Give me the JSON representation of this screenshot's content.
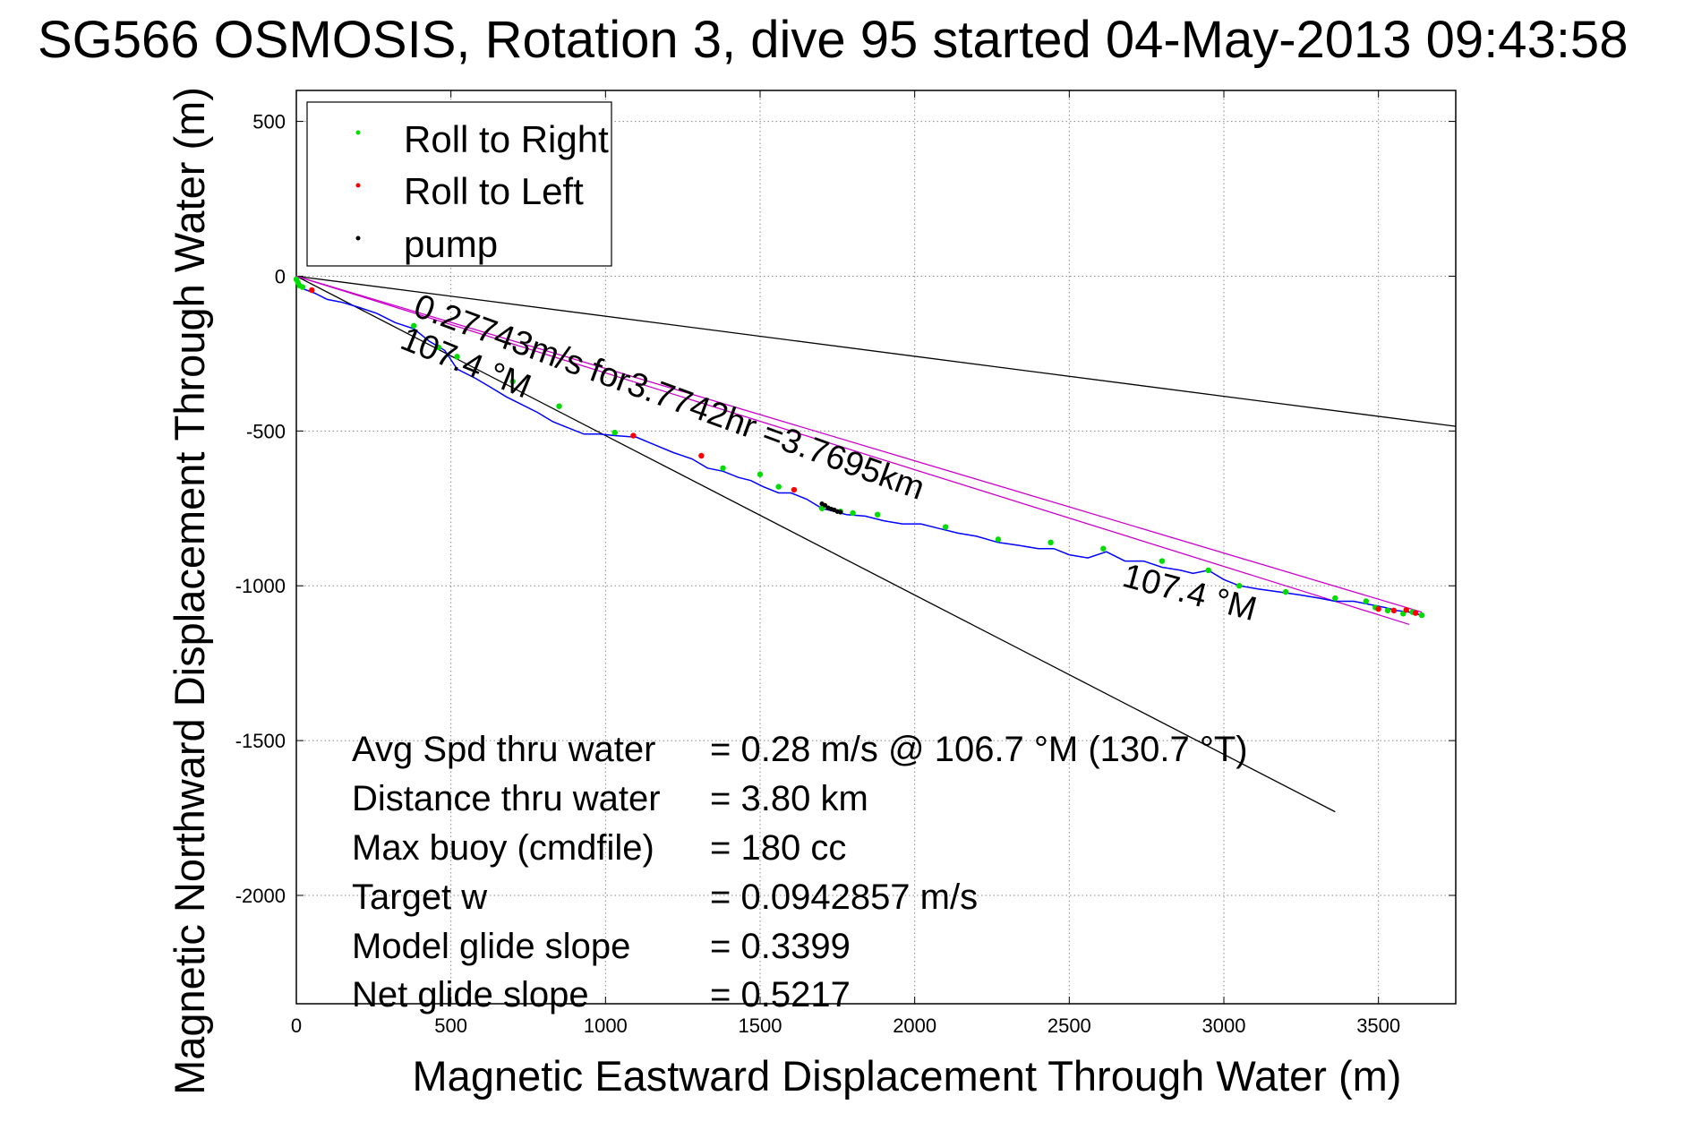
{
  "chart_data": {
    "type": "line",
    "title": "SG566 OSMOSIS, Rotation 3, dive 95 started 04-May-2013 09:43:58",
    "xlabel": "Magnetic Eastward Displacement Through Water (m)",
    "ylabel": "Magnetic Northward Displacement Through Water (m)",
    "xlim": [
      0,
      3750
    ],
    "ylim": [
      -2350,
      600
    ],
    "xticks": [
      0,
      500,
      1000,
      1500,
      2000,
      2500,
      3000,
      3500
    ],
    "yticks": [
      500,
      0,
      -500,
      -1000,
      -1500,
      -2000
    ],
    "grid": true,
    "legend": {
      "placement": "top-left",
      "entries": [
        {
          "label": "Roll to Right",
          "color": "#00dd00"
        },
        {
          "label": "Roll to Left",
          "color": "#ff0000"
        },
        {
          "label": "pump",
          "color": "#000000"
        }
      ]
    },
    "track": {
      "color": "#0000ff",
      "x": [
        0,
        20,
        60,
        100,
        150,
        200,
        260,
        320,
        380,
        430,
        480,
        520,
        580,
        630,
        680,
        720,
        780,
        830,
        880,
        930,
        980,
        1030,
        1100,
        1160,
        1220,
        1280,
        1330,
        1380,
        1430,
        1470,
        1510,
        1560,
        1600,
        1650,
        1700,
        1740,
        1780,
        1840,
        1900,
        1960,
        2020,
        2080,
        2140,
        2200,
        2270,
        2340,
        2400,
        2450,
        2500,
        2560,
        2620,
        2680,
        2740,
        2800,
        2860,
        2900,
        2950,
        3000,
        3050,
        3110,
        3180,
        3250,
        3310,
        3360,
        3420,
        3470,
        3520,
        3560,
        3600,
        3640
      ],
      "y": [
        -10,
        -40,
        -55,
        -75,
        -85,
        -100,
        -120,
        -150,
        -170,
        -210,
        -240,
        -300,
        -330,
        -360,
        -390,
        -410,
        -440,
        -470,
        -490,
        -510,
        -510,
        -515,
        -520,
        -545,
        -570,
        -590,
        -620,
        -630,
        -650,
        -660,
        -680,
        -700,
        -700,
        -720,
        -750,
        -760,
        -770,
        -775,
        -790,
        -800,
        -800,
        -815,
        -830,
        -840,
        -860,
        -870,
        -880,
        -880,
        -900,
        -910,
        -890,
        -920,
        -920,
        -940,
        -950,
        -960,
        -950,
        -980,
        -1000,
        -1010,
        -1020,
        -1030,
        -1040,
        -1050,
        -1050,
        -1060,
        -1070,
        -1080,
        -1085,
        -1095
      ]
    },
    "roll_right": {
      "color": "#00dd00",
      "x": [
        0,
        5,
        10,
        20,
        380,
        460,
        520,
        700,
        850,
        1030,
        1380,
        1500,
        1560,
        1700,
        1760,
        1800,
        1880,
        2100,
        2270,
        2440,
        2610,
        2800,
        2950,
        3050,
        3200,
        3360,
        3460,
        3490,
        3530,
        3580,
        3610,
        3640
      ],
      "y": [
        -10,
        -20,
        -30,
        -35,
        -160,
        -230,
        -260,
        -340,
        -420,
        -505,
        -620,
        -640,
        -680,
        -750,
        -760,
        -765,
        -770,
        -810,
        -850,
        -860,
        -880,
        -920,
        -950,
        -1000,
        -1020,
        -1040,
        -1050,
        -1070,
        -1080,
        -1090,
        -1085,
        -1095
      ]
    },
    "roll_left": {
      "color": "#ff0000",
      "x": [
        50,
        1090,
        1310,
        1610,
        3500,
        3550,
        3590,
        3620
      ],
      "y": [
        -45,
        -515,
        -580,
        -690,
        -1075,
        -1080,
        -1078,
        -1088
      ]
    },
    "pump": {
      "color": "#000000",
      "x": [
        1700,
        1710,
        1720,
        1730,
        1740,
        1750,
        1760
      ],
      "y": [
        -735,
        -740,
        -748,
        -752,
        -755,
        -760,
        -762
      ]
    },
    "reference_lines": [
      {
        "x": [
          0,
          3750
        ],
        "y": [
          0,
          -485
        ],
        "color": "#000000"
      },
      {
        "x": [
          0,
          3360
        ],
        "y": [
          0,
          -1730
        ],
        "color": "#000000"
      },
      {
        "x": [
          0,
          3600
        ],
        "y": [
          0,
          -1125
        ],
        "color": "#cc00cc"
      },
      {
        "x": [
          0,
          3640
        ],
        "y": [
          0,
          -1085
        ],
        "color": "#cc00cc"
      }
    ],
    "annotations": {
      "speed": "0.27743m/s for3.7742hr =3.7695km",
      "heading_upper": "107.4 °M",
      "heading_lower": "107.4 °M"
    },
    "stats": {
      "labels": [
        "Avg Spd thru water",
        "Distance thru water",
        "Max buoy (cmdfile)",
        "Target w",
        "Model glide slope",
        "Net glide slope"
      ],
      "values": [
        "=  0.28 m/s @ 106.7 °M (130.7 °T)",
        "=  3.80 km",
        "= 180 cc",
        "= 0.0942857 m/s",
        "= 0.3399",
        "= 0.5217"
      ]
    }
  }
}
